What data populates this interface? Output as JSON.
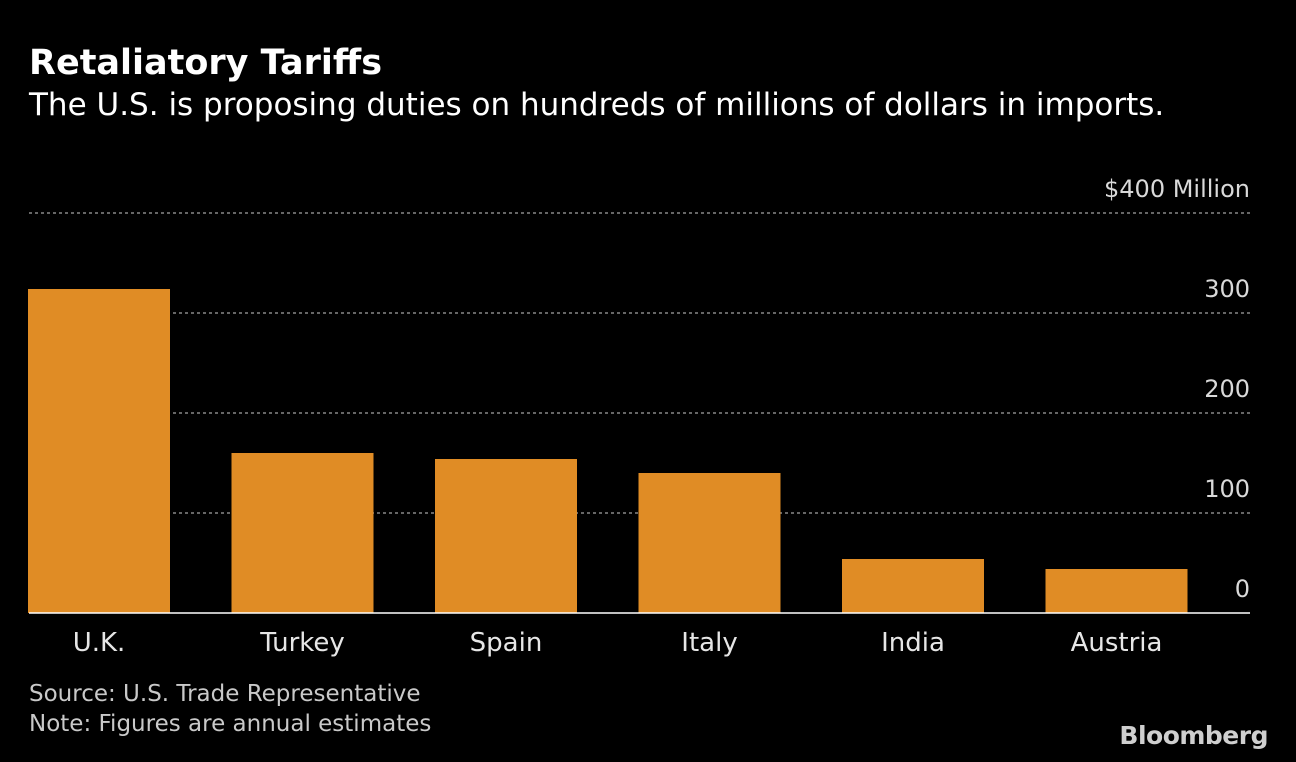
{
  "title": "Retaliatory Tariffs",
  "subtitle": "The U.S. is proposing duties on hundreds of millions of dollars in imports.",
  "source": "Source: U.S. Trade Representative",
  "note": "Note: Figures are annual estimates",
  "brand": "Bloomberg",
  "colors": {
    "background": "#000000",
    "bar": "#e08c25",
    "grid": "#888888",
    "text": "#ffffff"
  },
  "chart_data": {
    "type": "bar",
    "title": "Retaliatory Tariffs",
    "categories": [
      "U.K.",
      "Turkey",
      "Spain",
      "Italy",
      "India",
      "Austria"
    ],
    "values": [
      324,
      160,
      154,
      140,
      54,
      44
    ],
    "ylim": [
      0,
      400
    ],
    "yticks": [
      0,
      100,
      200,
      300,
      400
    ],
    "ytick_labels": [
      "0",
      "100",
      "200",
      "300",
      "$400 Million"
    ],
    "xlabel": "",
    "ylabel": "",
    "grid": true
  }
}
